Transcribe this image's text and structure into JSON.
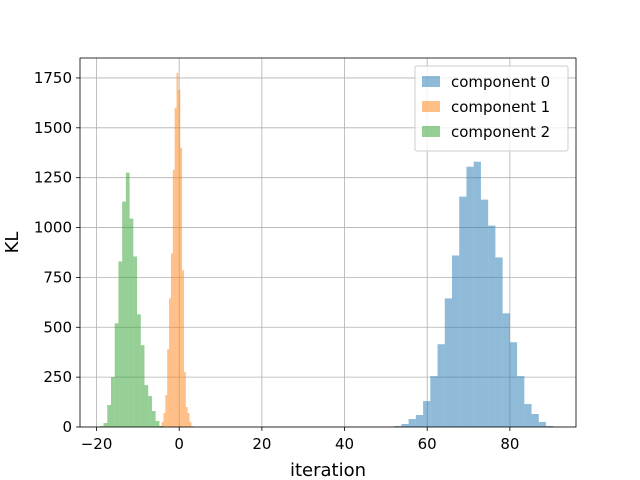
{
  "chart_data": {
    "type": "bar",
    "xlabel": "iteration",
    "ylabel": "KL",
    "xlim": [
      -24,
      96
    ],
    "ylim": [
      0,
      1850
    ],
    "xticks": [
      -20,
      0,
      20,
      40,
      60,
      80
    ],
    "yticks": [
      0,
      250,
      500,
      750,
      1000,
      1250,
      1500,
      1750
    ],
    "grid": true,
    "legend_position": "top-right",
    "series": [
      {
        "name": "component 0",
        "color": "#1f77b4",
        "bin_width": 1.75,
        "bins": [
          {
            "x": 52.0,
            "y": 5
          },
          {
            "x": 53.75,
            "y": 15
          },
          {
            "x": 55.5,
            "y": 40
          },
          {
            "x": 57.25,
            "y": 60
          },
          {
            "x": 59.0,
            "y": 130
          },
          {
            "x": 60.75,
            "y": 255
          },
          {
            "x": 62.5,
            "y": 415
          },
          {
            "x": 64.25,
            "y": 645
          },
          {
            "x": 66.0,
            "y": 860
          },
          {
            "x": 67.75,
            "y": 1155
          },
          {
            "x": 69.5,
            "y": 1305
          },
          {
            "x": 71.25,
            "y": 1330
          },
          {
            "x": 73.0,
            "y": 1140
          },
          {
            "x": 74.75,
            "y": 1010
          },
          {
            "x": 76.5,
            "y": 850
          },
          {
            "x": 78.25,
            "y": 570
          },
          {
            "x": 80.0,
            "y": 425
          },
          {
            "x": 81.75,
            "y": 255
          },
          {
            "x": 83.5,
            "y": 115
          },
          {
            "x": 85.25,
            "y": 65
          },
          {
            "x": 87.0,
            "y": 25
          },
          {
            "x": 88.75,
            "y": 5
          }
        ]
      },
      {
        "name": "component 1",
        "color": "#ff7f0e",
        "bin_width": 0.45,
        "bins": [
          {
            "x": -4.7,
            "y": 5
          },
          {
            "x": -4.25,
            "y": 25
          },
          {
            "x": -3.8,
            "y": 70
          },
          {
            "x": -3.35,
            "y": 160
          },
          {
            "x": -2.9,
            "y": 390
          },
          {
            "x": -2.45,
            "y": 645
          },
          {
            "x": -2.0,
            "y": 870
          },
          {
            "x": -1.55,
            "y": 1290
          },
          {
            "x": -1.1,
            "y": 1600
          },
          {
            "x": -0.65,
            "y": 1775
          },
          {
            "x": -0.2,
            "y": 1690
          },
          {
            "x": 0.25,
            "y": 1400
          },
          {
            "x": 0.7,
            "y": 785
          },
          {
            "x": 1.15,
            "y": 275
          },
          {
            "x": 1.6,
            "y": 100
          },
          {
            "x": 2.05,
            "y": 70
          },
          {
            "x": 2.5,
            "y": 25
          },
          {
            "x": 2.95,
            "y": 5
          }
        ]
      },
      {
        "name": "component 2",
        "color": "#2ca02c",
        "bin_width": 0.9,
        "bins": [
          {
            "x": -19.2,
            "y": 5
          },
          {
            "x": -18.3,
            "y": 20
          },
          {
            "x": -17.4,
            "y": 110
          },
          {
            "x": -16.5,
            "y": 250
          },
          {
            "x": -15.6,
            "y": 520
          },
          {
            "x": -14.7,
            "y": 830
          },
          {
            "x": -13.8,
            "y": 1130
          },
          {
            "x": -12.9,
            "y": 1275
          },
          {
            "x": -12.0,
            "y": 1045
          },
          {
            "x": -11.1,
            "y": 855
          },
          {
            "x": -10.2,
            "y": 565
          },
          {
            "x": -9.3,
            "y": 410
          },
          {
            "x": -8.4,
            "y": 210
          },
          {
            "x": -7.5,
            "y": 155
          },
          {
            "x": -6.6,
            "y": 80
          },
          {
            "x": -5.7,
            "y": 30
          },
          {
            "x": -4.8,
            "y": 5
          }
        ]
      }
    ]
  }
}
